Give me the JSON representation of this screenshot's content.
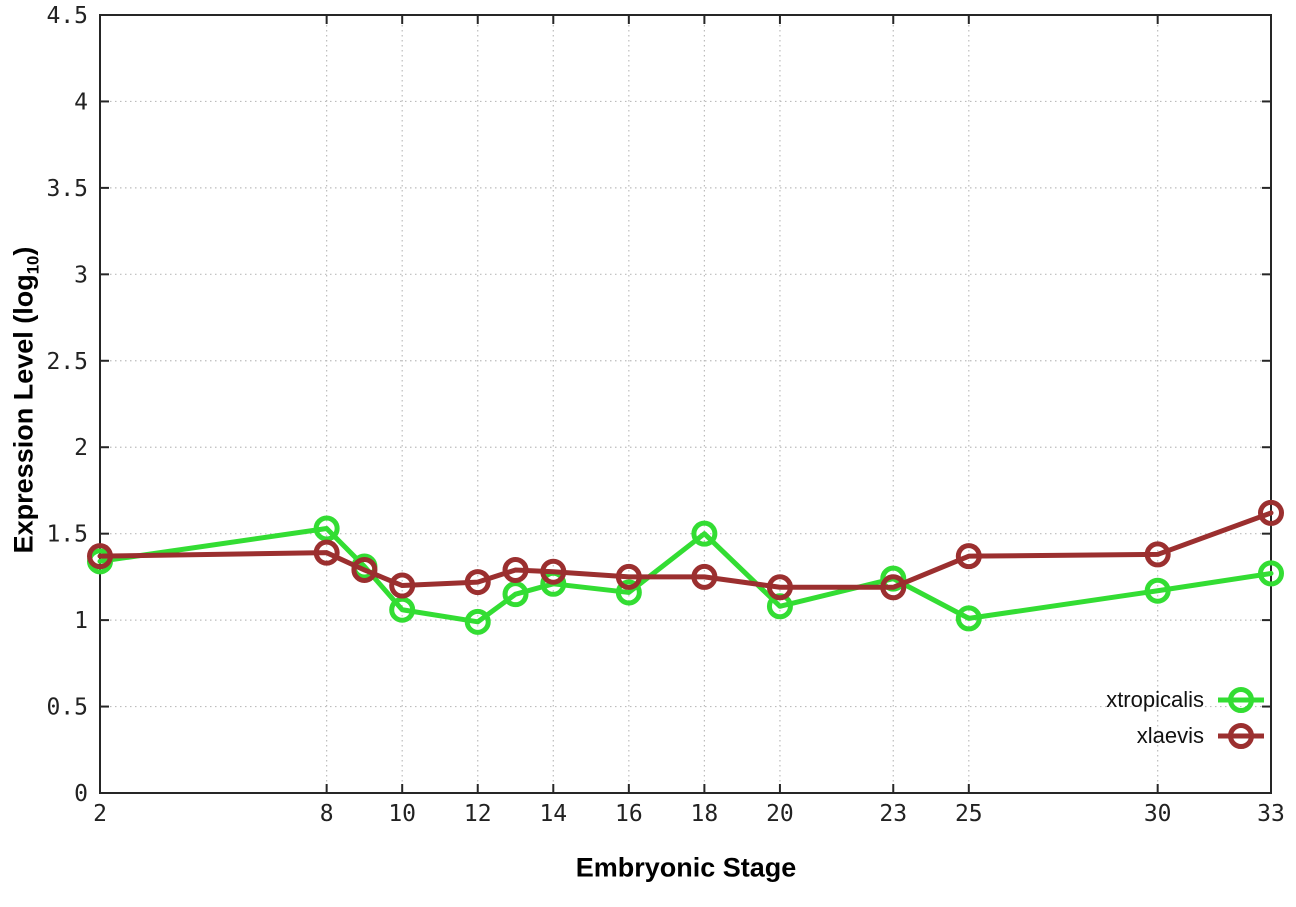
{
  "chart_data": {
    "type": "line",
    "title": "",
    "xlabel": "Embryonic Stage",
    "ylabel": "Expression Level (log10)",
    "ylabel_parts": {
      "pre": "Expression Level (log",
      "sub": "10",
      "post": ")"
    },
    "xlim": [
      2,
      33
    ],
    "ylim": [
      0,
      4.5
    ],
    "grid": true,
    "legend_position": "bottom-right",
    "marker": "open-circle",
    "background_color": "#ffffff",
    "axis_color": "#262626",
    "text_color": "#222222",
    "grid_color": "#bcbcbc",
    "x": [
      2,
      8,
      9,
      10,
      12,
      13,
      14,
      16,
      18,
      20,
      23,
      25,
      30,
      33
    ],
    "x_ticks": [
      2,
      8,
      10,
      12,
      14,
      16,
      18,
      20,
      23,
      25,
      30,
      33
    ],
    "x_tick_labels": [
      "2",
      "8",
      "10",
      "12",
      "14",
      "16",
      "18",
      "20",
      "23",
      "25",
      "30",
      "33"
    ],
    "y_ticks": [
      0,
      0.5,
      1,
      1.5,
      2,
      2.5,
      3,
      3.5,
      4,
      4.5
    ],
    "y_tick_labels": [
      "0",
      "0.5",
      "1",
      "1.5",
      "2",
      "2.5",
      "3",
      "3.5",
      "4",
      "4.5"
    ],
    "series": [
      {
        "name": "xtropicalis",
        "color": "#33dd33",
        "values": [
          1.34,
          1.53,
          1.31,
          1.06,
          0.99,
          1.15,
          1.21,
          1.16,
          1.5,
          1.08,
          1.24,
          1.01,
          1.17,
          1.27
        ]
      },
      {
        "name": "xlaevis",
        "color": "#9b2f2f",
        "values": [
          1.37,
          1.39,
          1.29,
          1.2,
          1.22,
          1.29,
          1.28,
          1.25,
          1.25,
          1.19,
          1.19,
          1.37,
          1.38,
          1.62
        ]
      }
    ]
  }
}
